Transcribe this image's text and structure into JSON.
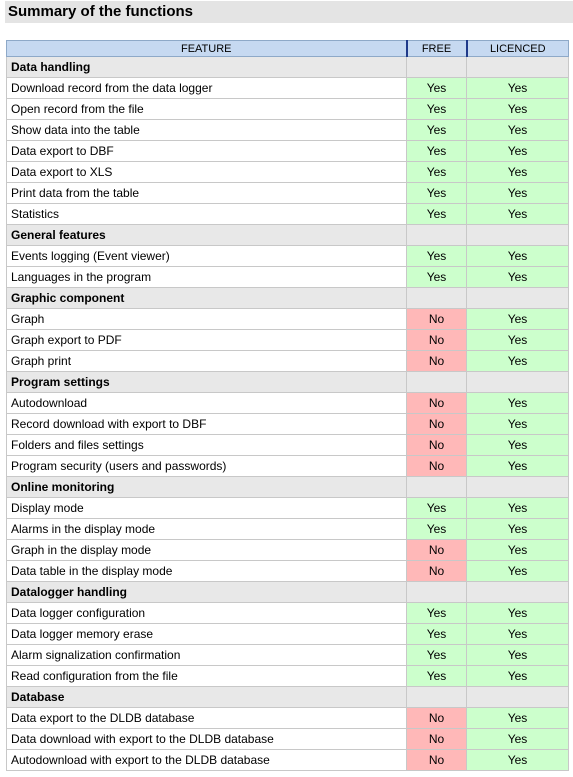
{
  "title": "Summary of the functions",
  "table": {
    "header": [
      "FEATURE",
      "FREE",
      "LICENCED"
    ],
    "colors": {
      "Yes": "#ccffcc",
      "No": "#ffb8b8"
    },
    "sections": [
      {
        "name": "Data handling",
        "rows": [
          [
            "Download record from the data logger",
            "Yes",
            "Yes"
          ],
          [
            "Open record from the file",
            "Yes",
            "Yes"
          ],
          [
            "Show data into the table",
            "Yes",
            "Yes"
          ],
          [
            "Data export to DBF",
            "Yes",
            "Yes"
          ],
          [
            "Data export to XLS",
            "Yes",
            "Yes"
          ],
          [
            "Print data from the table",
            "Yes",
            "Yes"
          ],
          [
            "Statistics",
            "Yes",
            "Yes"
          ]
        ]
      },
      {
        "name": "General features",
        "rows": [
          [
            "Events logging (Event viewer)",
            "Yes",
            "Yes"
          ],
          [
            "Languages in the program",
            "Yes",
            "Yes"
          ]
        ]
      },
      {
        "name": "Graphic component",
        "rows": [
          [
            "Graph",
            "No",
            "Yes"
          ],
          [
            "Graph export to PDF",
            "No",
            "Yes"
          ],
          [
            "Graph print",
            "No",
            "Yes"
          ]
        ]
      },
      {
        "name": "Program settings",
        "rows": [
          [
            "Autodownload",
            "No",
            "Yes"
          ],
          [
            "Record download with export to DBF",
            "No",
            "Yes"
          ],
          [
            "Folders and files settings",
            "No",
            "Yes"
          ],
          [
            "Program security (users and passwords)",
            "No",
            "Yes"
          ]
        ]
      },
      {
        "name": "Online monitoring",
        "rows": [
          [
            "Display mode",
            "Yes",
            "Yes"
          ],
          [
            "Alarms in the display mode",
            "Yes",
            "Yes"
          ],
          [
            "Graph in the display mode",
            "No",
            "Yes"
          ],
          [
            "Data table in the display mode",
            "No",
            "Yes"
          ]
        ]
      },
      {
        "name": "Datalogger handling",
        "rows": [
          [
            "Data logger configuration",
            "Yes",
            "Yes"
          ],
          [
            "Data logger memory erase",
            "Yes",
            "Yes"
          ],
          [
            "Alarm signalization confirmation",
            "Yes",
            "Yes"
          ],
          [
            "Read configuration from the file",
            "Yes",
            "Yes"
          ]
        ]
      },
      {
        "name": "Database",
        "rows": [
          [
            "Data export to the DLDB database",
            "No",
            "Yes"
          ],
          [
            "Data download with export to the DLDB database",
            "No",
            "Yes"
          ],
          [
            "Autodownload with export to the DLDB database",
            "No",
            "Yes"
          ]
        ]
      }
    ]
  }
}
